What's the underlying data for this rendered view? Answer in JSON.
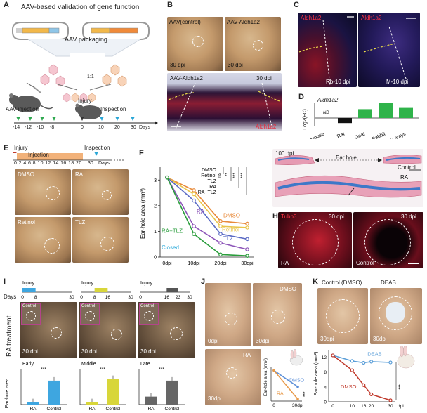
{
  "panels": {
    "a": "A",
    "b": "B",
    "c": "C",
    "d": "D",
    "e": "E",
    "f": "F",
    "g": "G",
    "h": "H",
    "i": "I",
    "j": "J",
    "k": "K"
  },
  "panel_a": {
    "title": "AAV-based validation of gene function",
    "packaging": "AAV packaging",
    "ratio": "1:1",
    "injury": "Injury",
    "aav_injection": "AAV injection",
    "inspection": "Inspection",
    "timeline_ticks": [
      "-14",
      "-12",
      "-10",
      "-8",
      "0",
      "10",
      "20",
      "30"
    ],
    "days": "Days"
  },
  "panel_b": {
    "control": "AAV(control)",
    "aldh": "AAV-Aldh1a2",
    "dpi1": "30 dpi",
    "dpi2": "30 dpi",
    "bottom_title": "AAV-Aldh1a2",
    "bottom_dpi": "30 dpi",
    "bottom_label": "Aldh1a2"
  },
  "panel_c": {
    "left_label": "Aldh1a2",
    "right_label": "Aldh1a2",
    "left_caption": "Rb-10 dpi",
    "right_caption": "M-10 dpi"
  },
  "panel_d": {
    "title": "Aldh1a2",
    "ylabel": "Log2(FC)",
    "nd": "ND"
  },
  "panel_e": {
    "injury": "Injury",
    "injection": "Injection",
    "inspection": "Inspection",
    "ticks": [
      "0",
      "2",
      "4",
      "6",
      "8",
      "10",
      "12",
      "14",
      "16",
      "18",
      "20"
    ],
    "end_tick": "30",
    "days": "Days",
    "photos": [
      "DMSO",
      "RA",
      "Retinol",
      "TLZ"
    ]
  },
  "panel_g": {
    "dpi": "100 dpi",
    "ear_hole": "Ear hole",
    "control": "Control",
    "ra": "RA"
  },
  "panel_h": {
    "marker": "Tubb3",
    "dpi_left": "30 dpi",
    "dpi_right": "30 dpi",
    "left_caption": "RA",
    "right_caption": "Control"
  },
  "panel_i": {
    "ra_treatment": "RA treatment",
    "days": "Days",
    "injury": "Injury",
    "timelines": [
      {
        "ticks": [
          "0",
          "8",
          "30"
        ],
        "color": "#3ea6e0"
      },
      {
        "ticks": [
          "0",
          "8",
          "16",
          "30"
        ],
        "color": "#d8d63a"
      },
      {
        "ticks": [
          "0",
          "16",
          "23",
          "30"
        ],
        "color": "#555555"
      }
    ],
    "control_tag": "Control",
    "dpi": "30 dpi",
    "ylabel": "Ear-hole area",
    "groups": [
      "Early",
      "Middle",
      "Late"
    ],
    "xticks": [
      "RA",
      "Control"
    ],
    "sig": "***"
  },
  "panel_j": {
    "dpi0": "0dpi",
    "dmso": "DMSO",
    "dpi30": "30dpi",
    "ra": "RA",
    "dpi30b": "30dpi",
    "ylabel": "Ear-hole area (mm²)",
    "xticks": [
      "0",
      "30dpi"
    ],
    "sig": "***"
  },
  "panel_k": {
    "control": "Control (DMSO)",
    "deab": "DEAB",
    "dpi_a": "30dpi",
    "dpi_b": "30dpi",
    "ylabel": "Ear-hole area (mm²)",
    "xticks": [
      "0",
      "10",
      "16",
      "20",
      "30"
    ],
    "xunit": "dpi",
    "sig": "***"
  },
  "chart_data": [
    {
      "id": "D",
      "type": "bar",
      "title": "Aldh1a2",
      "ylabel": "Log2(FC)",
      "categories": [
        "Mouse",
        "Rat",
        "Goat",
        "Rabbit",
        "Acomys"
      ],
      "values": [
        null,
        -0.8,
        1.4,
        2.4,
        1.6
      ],
      "colors": [
        "#000000",
        "#111111",
        "#2fb34a",
        "#2fb34a",
        "#2fb34a"
      ],
      "ylim": [
        -1.2,
        3
      ]
    },
    {
      "id": "F",
      "type": "line",
      "ylabel": "Ear-hole area (mm²)",
      "x": [
        "0dpi",
        "10dpi",
        "20dpi",
        "30dpi"
      ],
      "ylim": [
        0,
        3.5
      ],
      "yticks": [
        0,
        1,
        2,
        3
      ],
      "series": [
        {
          "name": "DMSO",
          "color": "#e88a3a",
          "values": [
            3.1,
            2.6,
            1.4,
            1.3
          ]
        },
        {
          "name": "Retinol",
          "color": "#e9c54a",
          "values": [
            3.1,
            2.45,
            1.2,
            1.15
          ]
        },
        {
          "name": "TLZ",
          "color": "#5a6ac4",
          "values": [
            3.1,
            2.2,
            0.9,
            0.7
          ]
        },
        {
          "name": "RA",
          "color": "#8c54b8",
          "values": [
            3.1,
            1.2,
            0.55,
            0.3
          ]
        },
        {
          "name": "RA+TLZ",
          "color": "#2a9d3c",
          "values": [
            3.1,
            0.9,
            0.1,
            0.05
          ]
        },
        {
          "name": "Closed",
          "color": "#2aa9d9",
          "values": [
            0,
            0,
            0,
            0
          ]
        }
      ],
      "legend": [
        "DMSO",
        "Retinol",
        "TLZ",
        "RA",
        "RA+TLZ"
      ],
      "sig": [
        "ns",
        "**",
        "***",
        "***"
      ]
    },
    {
      "id": "I",
      "type": "bar",
      "groups": [
        {
          "name": "Early",
          "values": [
            0.15,
            1.5
          ],
          "colors": [
            "#3ea6e0",
            "#3ea6e0"
          ]
        },
        {
          "name": "Middle",
          "values": [
            0.15,
            1.6
          ],
          "colors": [
            "#d8d63a",
            "#d8d63a"
          ]
        },
        {
          "name": "Late",
          "values": [
            0.5,
            1.5
          ],
          "colors": [
            "#666666",
            "#666666"
          ]
        }
      ],
      "ylim": [
        0,
        2.2
      ]
    },
    {
      "id": "J",
      "type": "line",
      "x": [
        "0",
        "30dpi"
      ],
      "series": [
        {
          "name": "DMSO",
          "color": "#5a8ed8",
          "values": [
            3.0,
            1.4
          ]
        },
        {
          "name": "RA",
          "color": "#e89a4a",
          "values": [
            3.0,
            0.2
          ]
        }
      ],
      "ylim": [
        0,
        3.3
      ]
    },
    {
      "id": "K",
      "type": "line",
      "x": [
        0,
        10,
        16,
        20,
        30
      ],
      "ylabel": "Ear-hole area (mm²)",
      "yticks": [
        0,
        4,
        8,
        12
      ],
      "ylim": [
        0,
        14
      ],
      "series": [
        {
          "name": "DEAB",
          "color": "#5a9ed8",
          "values": [
            12.5,
            11.0,
            10.5,
            10.8,
            10.6
          ]
        },
        {
          "name": "DMSO",
          "color": "#c0392b",
          "values": [
            12.5,
            8.5,
            4.5,
            2.0,
            0.4
          ]
        }
      ]
    }
  ]
}
